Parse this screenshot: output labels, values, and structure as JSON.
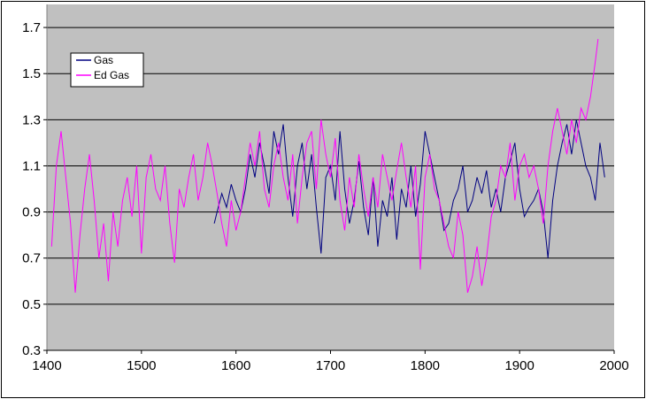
{
  "chart_data": {
    "type": "line",
    "title": "",
    "xlabel": "",
    "ylabel": "",
    "xlim": [
      1400,
      2000
    ],
    "ylim": [
      0.3,
      1.8
    ],
    "x_ticks": [
      1400,
      1500,
      1600,
      1700,
      1800,
      1900,
      2000
    ],
    "x_tick_labels": [
      "1400",
      "1500",
      "1600",
      "1700",
      "1800",
      "1900",
      "2000"
    ],
    "y_ticks": [
      0.3,
      0.5,
      0.7,
      0.9,
      1.1,
      1.3,
      1.5,
      1.7
    ],
    "y_tick_labels": [
      "0.3",
      "0.5",
      "0.7",
      "0.9",
      "1.1",
      "1.3",
      "1.5",
      "1.7"
    ],
    "grid": "horizontal",
    "plot_background": "#c0c0c0",
    "legend_position": "top-left",
    "series": [
      {
        "name": "Gas",
        "color": "#000080",
        "x": [
          1577,
          1580,
          1585,
          1590,
          1595,
          1600,
          1605,
          1610,
          1615,
          1620,
          1625,
          1630,
          1635,
          1640,
          1645,
          1650,
          1655,
          1660,
          1665,
          1670,
          1675,
          1680,
          1685,
          1690,
          1695,
          1700,
          1705,
          1710,
          1715,
          1720,
          1725,
          1730,
          1735,
          1740,
          1745,
          1750,
          1755,
          1760,
          1765,
          1770,
          1775,
          1780,
          1785,
          1790,
          1795,
          1800,
          1805,
          1810,
          1815,
          1820,
          1825,
          1830,
          1835,
          1840,
          1845,
          1850,
          1855,
          1860,
          1865,
          1870,
          1875,
          1880,
          1885,
          1890,
          1895,
          1900,
          1905,
          1910,
          1915,
          1920,
          1925,
          1930,
          1935,
          1940,
          1945,
          1950,
          1955,
          1960,
          1965,
          1970,
          1975,
          1980,
          1985,
          1990
        ],
        "values": [
          0.85,
          0.9,
          0.98,
          0.92,
          1.02,
          0.95,
          0.9,
          1.0,
          1.15,
          1.05,
          1.2,
          1.1,
          0.98,
          1.25,
          1.15,
          1.28,
          1.05,
          0.88,
          1.1,
          1.2,
          1.0,
          1.15,
          0.92,
          0.72,
          1.05,
          1.1,
          0.95,
          1.25,
          1.0,
          0.85,
          0.95,
          1.12,
          0.92,
          0.8,
          1.05,
          0.75,
          0.95,
          0.88,
          1.05,
          0.78,
          1.0,
          0.92,
          1.1,
          0.88,
          1.02,
          1.25,
          1.15,
          1.05,
          0.95,
          0.82,
          0.85,
          0.95,
          1.0,
          1.1,
          0.9,
          0.95,
          1.05,
          0.98,
          1.08,
          0.92,
          1.0,
          0.9,
          1.05,
          1.12,
          1.2,
          1.0,
          0.88,
          0.92,
          0.95,
          1.0,
          0.9,
          0.7,
          0.95,
          1.1,
          1.2,
          1.28,
          1.15,
          1.3,
          1.2,
          1.1,
          1.05,
          0.95,
          1.2,
          1.05
        ]
      },
      {
        "name": "Ed Gas",
        "color": "#ff00ff",
        "x": [
          1405,
          1410,
          1415,
          1420,
          1425,
          1430,
          1435,
          1440,
          1445,
          1450,
          1455,
          1460,
          1465,
          1470,
          1475,
          1480,
          1485,
          1490,
          1495,
          1500,
          1505,
          1510,
          1515,
          1520,
          1525,
          1530,
          1535,
          1540,
          1545,
          1550,
          1555,
          1560,
          1565,
          1570,
          1575,
          1580,
          1585,
          1590,
          1595,
          1600,
          1605,
          1610,
          1615,
          1620,
          1625,
          1630,
          1635,
          1640,
          1645,
          1650,
          1655,
          1660,
          1665,
          1670,
          1675,
          1680,
          1685,
          1690,
          1695,
          1700,
          1705,
          1710,
          1715,
          1720,
          1725,
          1730,
          1735,
          1740,
          1745,
          1750,
          1755,
          1760,
          1765,
          1770,
          1775,
          1780,
          1785,
          1790,
          1795,
          1800,
          1805,
          1810,
          1815,
          1820,
          1825,
          1830,
          1835,
          1840,
          1845,
          1850,
          1855,
          1860,
          1865,
          1870,
          1875,
          1880,
          1885,
          1890,
          1895,
          1900,
          1905,
          1910,
          1915,
          1920,
          1925,
          1930,
          1935,
          1940,
          1945,
          1950,
          1955,
          1960,
          1965,
          1970,
          1975,
          1980,
          1983
        ],
        "values": [
          0.75,
          1.1,
          1.25,
          1.05,
          0.85,
          0.55,
          0.8,
          1.0,
          1.15,
          0.95,
          0.7,
          0.85,
          0.6,
          0.9,
          0.75,
          0.95,
          1.05,
          0.88,
          1.1,
          0.72,
          1.05,
          1.15,
          1.0,
          0.95,
          1.1,
          0.85,
          0.68,
          1.0,
          0.92,
          1.05,
          1.15,
          0.95,
          1.05,
          1.2,
          1.1,
          0.98,
          0.85,
          0.75,
          0.95,
          0.82,
          0.9,
          1.05,
          1.2,
          1.1,
          1.25,
          1.0,
          0.92,
          1.1,
          1.2,
          1.05,
          0.95,
          1.15,
          0.85,
          1.05,
          1.2,
          1.25,
          1.0,
          1.3,
          1.15,
          1.05,
          1.22,
          0.95,
          0.82,
          1.05,
          0.92,
          1.15,
          1.0,
          0.88,
          1.05,
          0.92,
          1.15,
          1.05,
          0.95,
          1.08,
          1.2,
          1.05,
          0.92,
          1.1,
          0.65,
          1.05,
          1.15,
          1.0,
          0.95,
          0.85,
          0.75,
          0.7,
          0.9,
          0.8,
          0.55,
          0.62,
          0.75,
          0.58,
          0.7,
          0.88,
          0.95,
          1.1,
          1.05,
          1.2,
          0.95,
          1.1,
          1.15,
          1.05,
          1.1,
          1.0,
          0.85,
          1.1,
          1.25,
          1.35,
          1.25,
          1.15,
          1.3,
          1.2,
          1.35,
          1.3,
          1.4,
          1.55,
          1.65
        ]
      }
    ]
  }
}
